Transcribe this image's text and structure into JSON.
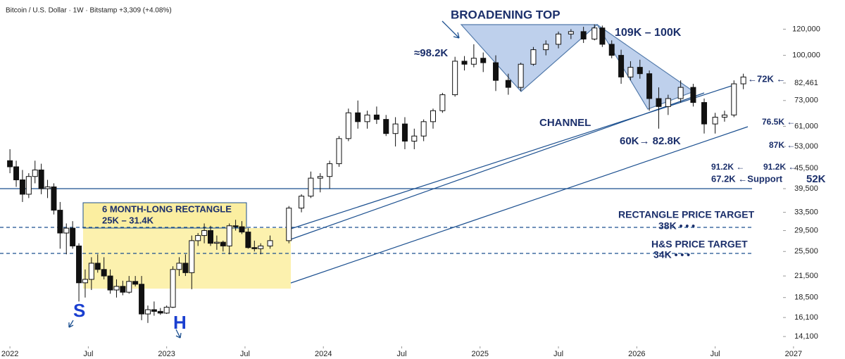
{
  "chart_data": {
    "type": "candlestick",
    "title": "Bitcoin / U.S. Dollar · 1W · Bitstamp +3,309 (+4.08%)",
    "x": [
      2022.0,
      2022.04,
      2022.08,
      2022.12,
      2022.16,
      2022.2,
      2022.24,
      2022.28,
      2022.32,
      2022.36,
      2022.4,
      2022.44,
      2022.48,
      2022.52,
      2022.56,
      2022.6,
      2022.64,
      2022.68,
      2022.72,
      2022.76,
      2022.8,
      2022.84,
      2022.88,
      2022.92,
      2022.96,
      2023.0,
      2023.04,
      2023.08,
      2023.12,
      2023.16,
      2023.2,
      2023.24,
      2023.28,
      2023.32,
      2023.36,
      2023.4,
      2023.44,
      2023.48,
      2023.52,
      2023.56,
      2023.6,
      2023.66,
      2023.78,
      2023.86,
      2023.92,
      2023.98,
      2024.04,
      2024.1,
      2024.16,
      2024.22,
      2024.28,
      2024.34,
      2024.4,
      2024.46,
      2024.52,
      2024.58,
      2024.64,
      2024.7,
      2024.76,
      2024.84,
      2024.9,
      2024.96,
      2025.02,
      2025.1,
      2025.18,
      2025.26,
      2025.34,
      2025.42,
      2025.5,
      2025.58,
      2025.66,
      2025.73,
      2025.78,
      2025.84,
      2025.9,
      2025.96,
      2026.02,
      2026.08,
      2026.14,
      2026.2,
      2026.28,
      2026.36,
      2026.43,
      2026.5,
      2026.56,
      2026.62,
      2026.68
    ],
    "open": [
      48000,
      46000,
      42000,
      38000,
      43000,
      45000,
      39500,
      40000,
      34000,
      29000,
      30000,
      26500,
      20500,
      21000,
      23500,
      22500,
      21500,
      19500,
      20000,
      19200,
      20700,
      20300,
      16500,
      17000,
      16800,
      16600,
      17300,
      22500,
      23500,
      22000,
      27500,
      28500,
      29500,
      27000,
      27200,
      26500,
      30500,
      30300,
      29200,
      26200,
      26000,
      26500,
      27500,
      34500,
      37500,
      42500,
      43000,
      47000,
      56000,
      67000,
      63000,
      66000,
      64000,
      58000,
      62000,
      55000,
      57000,
      63000,
      68000,
      76000,
      96000,
      94000,
      98000,
      95000,
      84000,
      80000,
      94000,
      104000,
      108000,
      116000,
      118000,
      112000,
      121000,
      108000,
      100000,
      86000,
      92000,
      88000,
      74000,
      70000,
      74000,
      80000,
      72000,
      62000,
      65000,
      66000,
      82000
    ],
    "high": [
      52000,
      48000,
      45000,
      44000,
      48000,
      47000,
      42000,
      41000,
      36000,
      31000,
      31500,
      27000,
      22500,
      24500,
      25000,
      24500,
      22500,
      21000,
      20800,
      21500,
      21500,
      21500,
      17500,
      18000,
      17200,
      17500,
      23000,
      24500,
      25000,
      28500,
      29000,
      31000,
      30500,
      28500,
      27500,
      31000,
      31800,
      31500,
      30000,
      27500,
      27000,
      28500,
      35000,
      38000,
      44500,
      44000,
      48000,
      57000,
      69000,
      73000,
      68000,
      70000,
      66000,
      65000,
      65000,
      60000,
      64000,
      69000,
      77000,
      99000,
      99500,
      108000,
      102000,
      100000,
      88000,
      95000,
      106000,
      111000,
      118000,
      120000,
      122000,
      124000,
      123000,
      111000,
      104000,
      96000,
      97000,
      90000,
      80000,
      76000,
      84000,
      82000,
      74000,
      67000,
      68000,
      84000,
      88000
    ],
    "low": [
      44000,
      40000,
      36000,
      37000,
      41000,
      38000,
      37000,
      33000,
      26000,
      25000,
      26000,
      18000,
      18500,
      19500,
      22000,
      21000,
      19000,
      18500,
      18800,
      19000,
      20000,
      15800,
      15500,
      16300,
      16400,
      16500,
      17200,
      21500,
      21500,
      19600,
      26500,
      27000,
      26500,
      25800,
      25500,
      25000,
      29500,
      28800,
      26000,
      25500,
      25000,
      26000,
      27000,
      33500,
      37000,
      38500,
      39500,
      46000,
      55000,
      60000,
      60000,
      62000,
      57000,
      53000,
      52000,
      52000,
      55000,
      60000,
      67000,
      75000,
      90000,
      92000,
      89000,
      78000,
      76000,
      78000,
      93000,
      100000,
      105000,
      112000,
      109000,
      111000,
      106000,
      98000,
      82000,
      84000,
      85000,
      68000,
      60000,
      66000,
      72000,
      70000,
      58000,
      58000,
      63000,
      65000,
      79000
    ],
    "close": [
      46000,
      42000,
      38000,
      43000,
      45000,
      39500,
      40000,
      34000,
      29000,
      30000,
      26500,
      20500,
      21000,
      23500,
      22500,
      21500,
      19500,
      20000,
      19200,
      20700,
      20300,
      16500,
      17000,
      16800,
      16600,
      17300,
      22500,
      23500,
      22000,
      27500,
      28500,
      29500,
      27000,
      27200,
      26500,
      30500,
      30300,
      29200,
      26200,
      26000,
      26500,
      27500,
      34500,
      37500,
      42500,
      43000,
      47000,
      56000,
      67000,
      63000,
      66000,
      64000,
      58000,
      62000,
      55000,
      57000,
      63000,
      68000,
      76000,
      96000,
      94000,
      98000,
      95000,
      84000,
      80000,
      94000,
      104000,
      108000,
      116000,
      118000,
      112000,
      121000,
      108000,
      100000,
      86000,
      92000,
      88000,
      74000,
      70000,
      74000,
      80000,
      72000,
      62000,
      65000,
      66000,
      82000,
      86000
    ],
    "up_color": "#ffffff",
    "down_color": "#111111",
    "log_scale": true,
    "xlim": [
      2021.95,
      2027.05
    ],
    "ylim": [
      13300,
      140000
    ],
    "xticks": [
      {
        "value": 2022,
        "label": "2022"
      },
      {
        "value": 2022.5,
        "label": "Jul"
      },
      {
        "value": 2023,
        "label": "2023"
      },
      {
        "value": 2023.5,
        "label": "Jul"
      },
      {
        "value": 2024,
        "label": "2024"
      },
      {
        "value": 2024.5,
        "label": "Jul"
      },
      {
        "value": 2025,
        "label": "2025"
      },
      {
        "value": 2025.5,
        "label": "Jul"
      },
      {
        "value": 2026,
        "label": "2026"
      },
      {
        "value": 2026.5,
        "label": "Jul"
      },
      {
        "value": 2027,
        "label": "2027"
      }
    ],
    "yticks": [
      {
        "value": 120000,
        "label": "120,000"
      },
      {
        "value": 100000,
        "label": "100,000"
      },
      {
        "value": 82461,
        "label": "82,461"
      },
      {
        "value": 73000,
        "label": "73,000"
      },
      {
        "value": 61000,
        "label": "61,000"
      },
      {
        "value": 53000,
        "label": "53,000"
      },
      {
        "value": 45500,
        "label": "45,500"
      },
      {
        "value": 39500,
        "label": "39,500"
      },
      {
        "value": 33500,
        "label": "33,500"
      },
      {
        "value": 29500,
        "label": "29,500"
      },
      {
        "value": 25500,
        "label": "25,500"
      },
      {
        "value": 21500,
        "label": "21,500"
      },
      {
        "value": 18500,
        "label": "18,500"
      },
      {
        "value": 16100,
        "label": "16,100"
      },
      {
        "value": 14100,
        "label": "14,100"
      }
    ],
    "annotations": {
      "broadening_top": "BROADENING TOP",
      "approx_98k": "≈98.2K",
      "range_109_100": "109K – 100K",
      "channel": "CHANNEL",
      "range_60_82": "60K→ 82.8K",
      "level_72k": "←72K ←",
      "level_76k": "76.5K ←",
      "level_87k": "87K ←",
      "level_91k_a": "91.2K ←",
      "level_91k_b": "91.2K ←",
      "support": "67.2K ←Support",
      "level_52k": "52K",
      "rectangle_title": "6 MONTH-LONG RECTANGLE",
      "rectangle_range": "25K – 31.4K",
      "rectangle_target": "RECTANGLE PRICE TARGET",
      "rectangle_target_value": "38K • • •",
      "hs_target": "H&S PRICE TARGET",
      "hs_target_value": "34K • • •",
      "shoulder": "S",
      "head": "H"
    }
  }
}
